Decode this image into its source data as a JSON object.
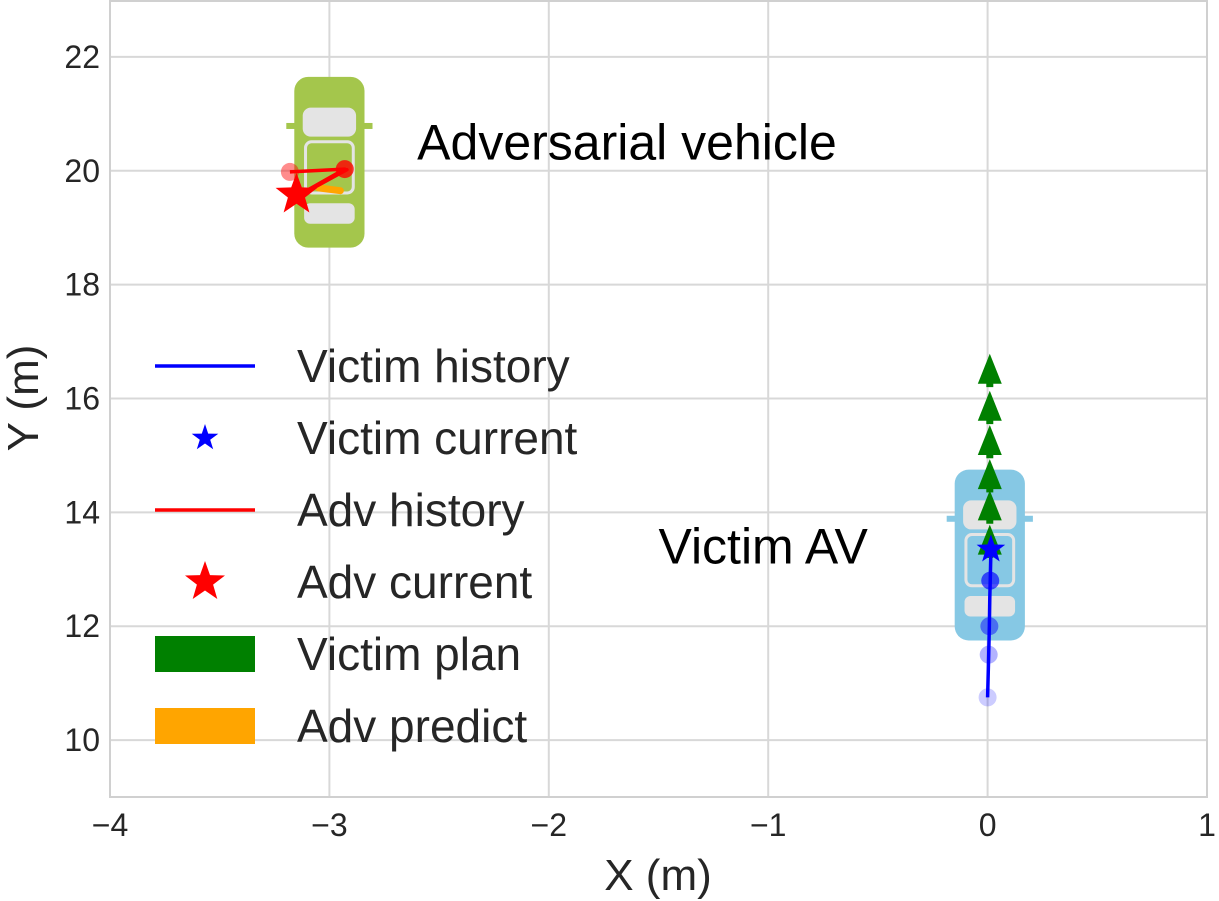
{
  "chart_data": {
    "type": "scatter",
    "title": "",
    "xlabel": "X (m)",
    "ylabel": "Y (m)",
    "xlim": [
      -4,
      1
    ],
    "ylim": [
      9,
      23
    ],
    "xticks": [
      -4,
      -3,
      -2,
      -1,
      0,
      1
    ],
    "xtick_labels": [
      "−4",
      "−3",
      "−2",
      "−1",
      "0",
      "1"
    ],
    "yticks": [
      10,
      12,
      14,
      16,
      18,
      20,
      22
    ],
    "ytick_labels": [
      "10",
      "12",
      "14",
      "16",
      "18",
      "20",
      "22"
    ],
    "grid": true,
    "legend_position": "left",
    "annotations": [
      {
        "text": "Adversarial vehicle",
        "x": -2.6,
        "y": 20.2
      },
      {
        "text": "Victim AV",
        "x": -1.5,
        "y": 13.1
      }
    ],
    "vehicles": [
      {
        "name": "adversarial",
        "color": "#a4c64c",
        "x": -3.0,
        "y": 20.15,
        "length": 3.0,
        "width": 0.32
      },
      {
        "name": "victim",
        "color": "#86c8e4",
        "x": 0.01,
        "y": 13.25,
        "length": 3.0,
        "width": 0.32
      }
    ],
    "series": [
      {
        "name": "Victim history",
        "kind": "line",
        "color": "#0000ff",
        "x": [
          0.0,
          0.005,
          0.008,
          0.01,
          0.012,
          0.015
        ],
        "y": [
          10.75,
          11.5,
          12.0,
          12.5,
          12.8,
          13.3
        ]
      },
      {
        "name": "Victim history markers",
        "kind": "markers",
        "color": "#0000ff",
        "x": [
          0.0,
          0.005,
          0.008,
          0.012
        ],
        "y": [
          10.75,
          11.5,
          12.0,
          12.8
        ],
        "alpha": [
          0.2,
          0.3,
          0.45,
          0.65
        ]
      },
      {
        "name": "Victim current",
        "kind": "star",
        "color": "#0000ff",
        "x": [
          0.015
        ],
        "y": [
          13.35
        ]
      },
      {
        "name": "Adv history",
        "kind": "line",
        "color": "#ff0000",
        "x": [
          -3.18,
          -2.93,
          -3.15,
          -2.92,
          -3.12
        ],
        "y": [
          19.98,
          20.03,
          19.55,
          20.02,
          19.6
        ]
      },
      {
        "name": "Adv history markers",
        "kind": "markers",
        "color": "#ff0000",
        "x": [
          -3.18,
          -2.93
        ],
        "y": [
          19.98,
          20.03
        ],
        "alpha": [
          0.45,
          0.8
        ]
      },
      {
        "name": "Adv current",
        "kind": "star",
        "color": "#ff0000",
        "x": [
          -3.15
        ],
        "y": [
          19.58
        ]
      },
      {
        "name": "Adv predict",
        "kind": "arrows",
        "color": "#ffa500",
        "x": [
          -3.05,
          -2.95
        ],
        "y": [
          19.7,
          19.65
        ]
      },
      {
        "name": "Victim plan",
        "kind": "arrows",
        "color": "#008000",
        "x": [
          0.01,
          0.01,
          0.01,
          0.01,
          0.01,
          0.01
        ],
        "y": [
          13.2,
          13.8,
          14.35,
          14.95,
          15.55,
          16.2
        ],
        "dy": 0.55
      }
    ],
    "legend": [
      {
        "label": "Victim history",
        "kind": "line",
        "color": "#0000ff"
      },
      {
        "label": "Victim current",
        "kind": "star-small",
        "color": "#0000ff"
      },
      {
        "label": "Adv history",
        "kind": "line",
        "color": "#ff0000"
      },
      {
        "label": "Adv current",
        "kind": "star",
        "color": "#ff0000"
      },
      {
        "label": "Victim plan",
        "kind": "patch",
        "color": "#008000"
      },
      {
        "label": "Adv predict",
        "kind": "patch",
        "color": "#ffa500"
      }
    ]
  }
}
